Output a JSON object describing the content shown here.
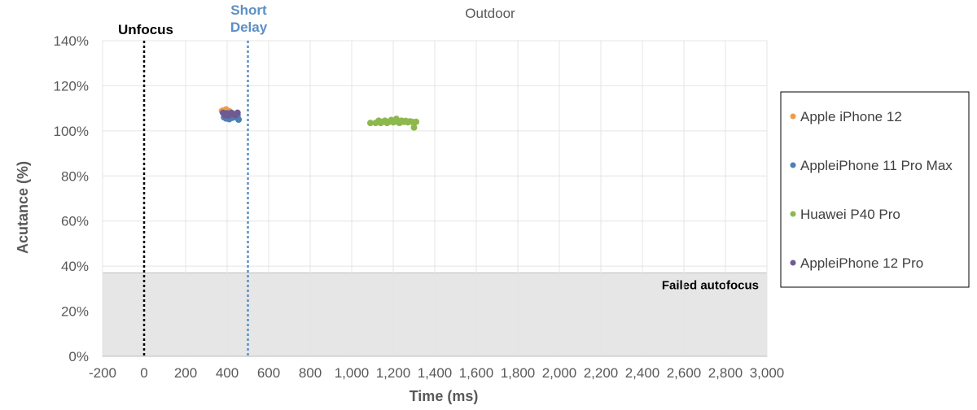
{
  "chart_data": {
    "type": "scatter",
    "title": "Outdoor",
    "xlabel": "Time (ms)",
    "ylabel": "Acutance (%)",
    "xlim": [
      -200,
      3000
    ],
    "ylim": [
      0,
      140
    ],
    "x_ticks": [
      -200,
      0,
      200,
      400,
      600,
      800,
      1000,
      1200,
      1400,
      1600,
      1800,
      2000,
      2200,
      2400,
      2600,
      2800,
      3000
    ],
    "x_tick_labels": [
      "-200",
      "0",
      "200",
      "400",
      "600",
      "800",
      "1,000",
      "1,200",
      "1,400",
      "1,600",
      "1,800",
      "2,000",
      "2,200",
      "2,400",
      "2,600",
      "2,800",
      "3,000"
    ],
    "y_ticks": [
      0,
      20,
      40,
      60,
      80,
      100,
      120,
      140
    ],
    "y_tick_labels": [
      "0%",
      "20%",
      "40%",
      "60%",
      "80%",
      "100%",
      "120%",
      "140%"
    ],
    "grid": true,
    "legend_position": "right",
    "vertical_lines": [
      {
        "x": 0,
        "label": "Unfocus",
        "color": "#000000"
      },
      {
        "x": 500,
        "label_lines": [
          "Short",
          "Delay"
        ],
        "color": "#5b8fc4"
      }
    ],
    "shaded_region": {
      "y_from": 0,
      "y_to": 37,
      "label": "Failed autofocus",
      "color": "#e6e6e6"
    },
    "series": [
      {
        "name": "Apple iPhone 12",
        "color": "#ed9e45",
        "points": [
          [
            380,
            109
          ],
          [
            385,
            108.5
          ],
          [
            395,
            109.5
          ],
          [
            400,
            108
          ],
          [
            390,
            107.5
          ],
          [
            410,
            108.7
          ],
          [
            420,
            108
          ],
          [
            375,
            108.8
          ]
        ]
      },
      {
        "name": "AppleiPhone 11 Pro Max",
        "color": "#4e7fb5",
        "points": [
          [
            385,
            106
          ],
          [
            395,
            105.5
          ],
          [
            405,
            107
          ],
          [
            415,
            106
          ],
          [
            425,
            105.8
          ],
          [
            435,
            106.5
          ],
          [
            445,
            106
          ],
          [
            455,
            105
          ],
          [
            390,
            107
          ],
          [
            450,
            106.8
          ],
          [
            430,
            107.2
          ],
          [
            410,
            105.2
          ]
        ]
      },
      {
        "name": "Huawei P40 Pro",
        "color": "#8db84e",
        "points": [
          [
            1090,
            103.5
          ],
          [
            1115,
            103.5
          ],
          [
            1130,
            104.5
          ],
          [
            1140,
            103.5
          ],
          [
            1150,
            104
          ],
          [
            1160,
            104.5
          ],
          [
            1170,
            103.5
          ],
          [
            1180,
            104
          ],
          [
            1190,
            104.8
          ],
          [
            1200,
            103.8
          ],
          [
            1210,
            104.5
          ],
          [
            1215,
            105.3
          ],
          [
            1220,
            104
          ],
          [
            1230,
            103.5
          ],
          [
            1240,
            104.5
          ],
          [
            1250,
            104
          ],
          [
            1260,
            104.4
          ],
          [
            1270,
            103.8
          ],
          [
            1280,
            104.2
          ],
          [
            1290,
            104
          ],
          [
            1300,
            101.5
          ],
          [
            1310,
            104
          ]
        ]
      },
      {
        "name": "AppleiPhone 12 Pro",
        "color": "#6f5a93",
        "points": [
          [
            380,
            108
          ],
          [
            390,
            107
          ],
          [
            400,
            107.8
          ],
          [
            410,
            107
          ],
          [
            420,
            108
          ],
          [
            430,
            107.5
          ],
          [
            440,
            107
          ],
          [
            450,
            108
          ],
          [
            405,
            106.8
          ]
        ]
      }
    ]
  }
}
